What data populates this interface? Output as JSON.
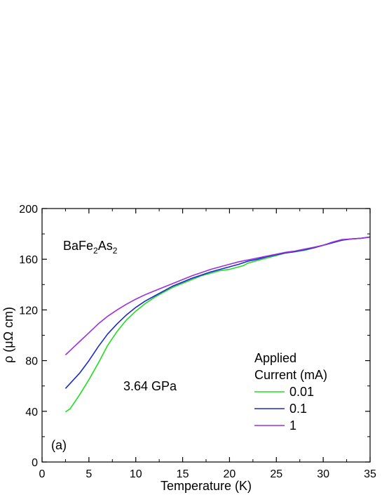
{
  "chart_data": {
    "type": "line",
    "xlabel": "Temperature (K)",
    "ylabel": "ρ (μΩ cm)",
    "xlim": [
      0,
      35
    ],
    "ylim": [
      0,
      200
    ],
    "x_ticks": [
      0,
      5,
      10,
      15,
      20,
      25,
      30,
      35
    ],
    "y_ticks": [
      0,
      40,
      80,
      120,
      160,
      200
    ],
    "grid": false,
    "sample_label": {
      "base": "BaFe",
      "sub1": "2",
      "mid": "As",
      "sub2": "2"
    },
    "pressure_label": "3.64 GPa",
    "panel_label": "(a)",
    "legend": {
      "title_line1": "Applied",
      "title_line2": "Current (mA)",
      "placement": "right-center"
    },
    "series": [
      {
        "name": "0.01",
        "color": "#22dd22",
        "points": [
          [
            2.5,
            39.5
          ],
          [
            3,
            42
          ],
          [
            4,
            53
          ],
          [
            5,
            65
          ],
          [
            6,
            78
          ],
          [
            7,
            92
          ],
          [
            8,
            103
          ],
          [
            9,
            112
          ],
          [
            10,
            119
          ],
          [
            11,
            125
          ],
          [
            12,
            130
          ],
          [
            13,
            134
          ],
          [
            14,
            138
          ],
          [
            15,
            141
          ],
          [
            16,
            144
          ],
          [
            17,
            147
          ],
          [
            18,
            149
          ],
          [
            19,
            151
          ],
          [
            20,
            152
          ],
          [
            21,
            154
          ],
          [
            21.5,
            155
          ],
          [
            22,
            157
          ],
          [
            23,
            159
          ],
          [
            24,
            161
          ],
          [
            25,
            163
          ],
          [
            26,
            165
          ],
          [
            27,
            166
          ],
          [
            28,
            167
          ],
          [
            29,
            169
          ],
          [
            30,
            171
          ],
          [
            31,
            173
          ],
          [
            32,
            175
          ],
          [
            33,
            176
          ],
          [
            34,
            176.5
          ],
          [
            35,
            177.5
          ]
        ]
      },
      {
        "name": "0.1",
        "color": "#1a2ad0",
        "points": [
          [
            2.5,
            58
          ],
          [
            3,
            62
          ],
          [
            4,
            70
          ],
          [
            5,
            80
          ],
          [
            6,
            91
          ],
          [
            7,
            101
          ],
          [
            8,
            109
          ],
          [
            9,
            116
          ],
          [
            10,
            122
          ],
          [
            11,
            127
          ],
          [
            12,
            131
          ],
          [
            13,
            135
          ],
          [
            14,
            139
          ],
          [
            15,
            142
          ],
          [
            16,
            145
          ],
          [
            17,
            147.5
          ],
          [
            18,
            150
          ],
          [
            19,
            152
          ],
          [
            20,
            154
          ],
          [
            21,
            156
          ],
          [
            22,
            158.5
          ],
          [
            23,
            160
          ],
          [
            24,
            162
          ],
          [
            25,
            163.5
          ],
          [
            26,
            165
          ],
          [
            27,
            166
          ],
          [
            28,
            167.5
          ],
          [
            29,
            169
          ],
          [
            30,
            171
          ],
          [
            31,
            173
          ],
          [
            32,
            175
          ],
          [
            33,
            176
          ],
          [
            34,
            176.5
          ],
          [
            35,
            177.5
          ]
        ]
      },
      {
        "name": "1",
        "color": "#9b30e0",
        "points": [
          [
            2.5,
            84.5
          ],
          [
            3,
            88
          ],
          [
            4,
            95
          ],
          [
            5,
            102
          ],
          [
            6,
            109
          ],
          [
            7,
            115
          ],
          [
            8,
            120
          ],
          [
            9,
            124.5
          ],
          [
            10,
            128.5
          ],
          [
            11,
            132
          ],
          [
            12,
            135
          ],
          [
            13,
            138
          ],
          [
            14,
            141
          ],
          [
            15,
            144
          ],
          [
            16,
            147
          ],
          [
            17,
            149.5
          ],
          [
            18,
            152
          ],
          [
            19,
            154
          ],
          [
            20,
            156
          ],
          [
            21,
            158
          ],
          [
            22,
            159.5
          ],
          [
            23,
            161
          ],
          [
            24,
            162.5
          ],
          [
            25,
            164
          ],
          [
            26,
            165.5
          ],
          [
            27,
            166.5
          ],
          [
            28,
            168
          ],
          [
            29,
            169.5
          ],
          [
            30,
            171
          ],
          [
            31,
            173.5
          ],
          [
            32,
            175.5
          ],
          [
            33,
            176
          ],
          [
            34,
            176.5
          ],
          [
            35,
            177.5
          ]
        ]
      }
    ]
  }
}
